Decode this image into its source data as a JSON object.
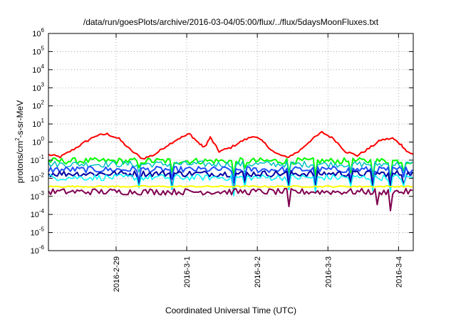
{
  "chart_data": {
    "type": "line",
    "title": "/data/run/goesPlots/archive/2016-03-04/05:00/flux/../flux/5daysMoonFluxes.txt",
    "xlabel": "Coordinated Universal Time (UTC)",
    "ylabel": "protons/cm2-s-sr-MeV",
    "ylabel_parts": {
      "before": "protons/cm",
      "sup": "2",
      "after": "-s-sr-MeV"
    },
    "y_scale": "log",
    "ylim": [
      1e-06,
      1000000.0
    ],
    "y_ticks": [
      {
        "base": "10",
        "exp": "-6",
        "value": 1e-06
      },
      {
        "base": "10",
        "exp": "-5",
        "value": 1e-05
      },
      {
        "base": "10",
        "exp": "-4",
        "value": 0.0001
      },
      {
        "base": "10",
        "exp": "-3",
        "value": 0.001
      },
      {
        "base": "10",
        "exp": "-2",
        "value": 0.01
      },
      {
        "base": "10",
        "exp": "-1",
        "value": 0.1
      },
      {
        "base": "10",
        "exp": "0",
        "value": 1
      },
      {
        "base": "10",
        "exp": "1",
        "value": 10
      },
      {
        "base": "10",
        "exp": "2",
        "value": 100
      },
      {
        "base": "10",
        "exp": "3",
        "value": 1000
      },
      {
        "base": "10",
        "exp": "4",
        "value": 10000
      },
      {
        "base": "10",
        "exp": "5",
        "value": 100000
      },
      {
        "base": "10",
        "exp": "6",
        "value": 1000000
      }
    ],
    "xlim": [
      "2016-02-28 01:00",
      "2016-03-04 05:00"
    ],
    "x_ticks": [
      {
        "label": "2016-2-29",
        "value": "2016-02-29 00:00"
      },
      {
        "label": "2016-3-1",
        "value": "2016-03-01 00:00"
      },
      {
        "label": "2016-3-2",
        "value": "2016-03-02 00:00"
      },
      {
        "label": "2016-3-3",
        "value": "2016-03-03 00:00"
      },
      {
        "label": "2016-3-4",
        "value": "2016-03-04 00:00"
      }
    ],
    "grid": true,
    "series": [
      {
        "color": "#ff0000",
        "width": 2,
        "points": [
          [
            "2016-02-28 01:00",
            0.2
          ],
          [
            "2016-02-28 05:00",
            0.15
          ],
          [
            "2016-02-28 09:00",
            0.35
          ],
          [
            "2016-02-28 13:00",
            0.9
          ],
          [
            "2016-02-28 17:00",
            2.2
          ],
          [
            "2016-02-28 21:00",
            2.8
          ],
          [
            "2016-02-29 01:00",
            1.5
          ],
          [
            "2016-02-29 05:00",
            0.35
          ],
          [
            "2016-02-29 09:00",
            0.12
          ],
          [
            "2016-02-29 13:00",
            0.2
          ],
          [
            "2016-02-29 17:00",
            0.6
          ],
          [
            "2016-02-29 21:00",
            1.5
          ],
          [
            "2016-03-01 01:00",
            2.8
          ],
          [
            "2016-03-01 04:00",
            0.9
          ],
          [
            "2016-03-01 06:00",
            0.5
          ],
          [
            "2016-03-01 08:00",
            1.8
          ],
          [
            "2016-03-01 11:00",
            0.3
          ],
          [
            "2016-03-01 15:00",
            0.5
          ],
          [
            "2016-03-01 19:00",
            1.2
          ],
          [
            "2016-03-01 23:00",
            2.2
          ],
          [
            "2016-03-02 02:00",
            1.0
          ],
          [
            "2016-03-02 06:00",
            0.25
          ],
          [
            "2016-03-02 10:00",
            0.14
          ],
          [
            "2016-03-02 14:00",
            0.3
          ],
          [
            "2016-03-02 18:00",
            1.2
          ],
          [
            "2016-03-02 22:00",
            3.5
          ],
          [
            "2016-03-03 02:00",
            1.5
          ],
          [
            "2016-03-03 06:00",
            0.3
          ],
          [
            "2016-03-03 10:00",
            0.18
          ],
          [
            "2016-03-03 14:00",
            0.45
          ],
          [
            "2016-03-03 18:00",
            1.3
          ],
          [
            "2016-03-03 22:00",
            1.6
          ],
          [
            "2016-03-04 01:00",
            0.7
          ],
          [
            "2016-03-04 03:00",
            0.28
          ],
          [
            "2016-03-04 05:00",
            0.22
          ]
        ]
      },
      {
        "color": "#00ff00",
        "width": 2,
        "level": 0.09
      },
      {
        "color": "#00c0c0",
        "width": 1.5,
        "level": 0.06
      },
      {
        "color": "#1e50ff",
        "width": 2,
        "level": 0.03
      },
      {
        "color": "#0000a0",
        "width": 2,
        "level": 0.018
      },
      {
        "color": "#00ffff",
        "width": 1.5,
        "level": 0.011
      },
      {
        "color": "#ffff00",
        "width": 2,
        "level": 0.0035
      },
      {
        "color": "#800050",
        "width": 2,
        "level": 0.0018
      }
    ]
  }
}
